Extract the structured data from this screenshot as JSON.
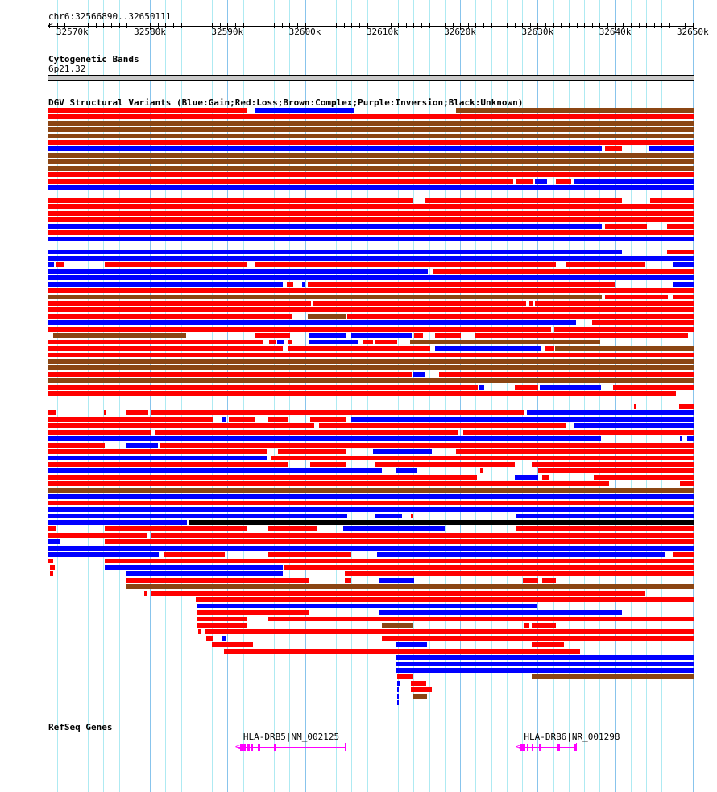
{
  "ruler": {
    "location": "chr6:32566890..32650111",
    "start_kb": 32566.89,
    "end_kb": 32650.11,
    "tick_labels": [
      "32570k",
      "32580k",
      "32590k",
      "32600k",
      "32610k",
      "32620k",
      "32630k",
      "32640k",
      "32650k"
    ]
  },
  "cyto": {
    "title": "Cytogenetic Bands",
    "band": "6p21.32"
  },
  "dgv": {
    "title": "DGV Structural Variants (Blue:Gain;Red:Loss;Brown:Complex;Purple:Inversion;Black:Unknown)",
    "colors": {
      "r": "#ff0000",
      "b": "#0000ff",
      "n": "#8b4513",
      "k": "#000000"
    },
    "rows": [
      "r:32566.9-32592.4,b:32593.5-32606.4,n:32619.5-32650.1",
      "r:32566.9-32650.1",
      "n:32566.9-32650.1",
      "n:32566.9-32650.1",
      "n:32566.9-32650.1",
      "r:32566.9-32650.1",
      "b:32566.9-32638.3,r:32638.7-32640.9,b:32644.4-32650.1",
      "n:32566.9-32650.1",
      "n:32566.9-32650.1",
      "n:32566.9-32650.1",
      "r:32566.9-32650.1",
      "r:32566.9-32626.8,r:32627.2-32629.3,b:32629.6-32631.2,r:32632.3-32634.3,b:32634.7-32650.1",
      "b:32566.9-32650.1",
      "",
      "r:32566.9-32614.0,r:32615.4-32640.9,r:32644.5-32650.1",
      "r:32566.9-32650.1",
      "r:32566.9-32650.1",
      "r:32566.9-32650.1",
      "b:32566.9-32638.3,r:32638.7-32644.1,r:32646.7-32650.1",
      "r:32566.9-32650.1",
      "b:32566.9-32650.1",
      "",
      "b:32566.9-32640.9,r:32646.7-32650.1",
      "b:32566.9-32650.1",
      "b:32566.9-32567.6,r:32567.8-32569.0,r:32574.2-32592.6,r:32593.5-32632.3,r:32633.7-32643.9,b:32647.5-32650.1",
      "b:32566.9-32615.8,r:32616.4-32650.1",
      "b:32566.9-32650.1",
      "b:32566.9-32597.1,r:32597.6-32598.5,b:32599.6-32599.9,r:32600.3-32639.9,b:32647.5-32650.1",
      "r:32566.9-32650.1",
      "n:32566.9-32638.3,r:32638.7-32646.8,r:32647.5-32650.1",
      "r:32566.9-32600.8,r:32601.0-32628.5,r:32628.9-32629.3,r:32629.6-32650.1",
      "r:32566.9-32650.1",
      "r:32566.9-32598.3,n:32600.3-32605.2,r:32605.4-32650.1",
      "b:32566.9-32634.9,r:32637.0-32650.1",
      "r:32566.9-32631.7,r:32632.1-32650.1",
      "n:32567.5-32584.7,r:32593.5-32598.1,b:32600.4-32605.2,b:32606.0-32613.8,r:32614.1-32615.2,r:32616.8-32620.1,r:32622.0-32649.4",
      "r:32566.9-32594.6,r:32595.4-32596.3,b:32596.4-32597.3,r:32597.7-32598.3,b:32600.4-32606.8,r:32607.4-32608.8,r:32609.1-32611.9,n:32613.5-32638.1",
      "r:32566.9-32597.1,r:32597.7-32616.1,b:32616.8-32630.5,r:32630.9-32632.1,n:32632.2-32650.1",
      "r:32566.9-32650.1",
      "n:32566.9-32650.1",
      "n:32566.9-32650.1",
      "r:32566.9-32613.8,b:32614.0-32615.4,r:32617.3-32650.1",
      "n:32566.9-32650.1",
      "r:32566.9-32622.3,b:32622.5-32623.1,r:32627.0-32630.1,b:32630.3-32638.2,r:32639.7-32650.1",
      "r:32566.9-32647.8",
      "",
      "r:32642.4-32642.6,r:32648.2-32650.1",
      "r:32566.9-32567.8,r:32574.1-32574.3,r:32577.0-32579.8,r:32580.1-32628.2,b:32628.6-32650.1",
      "r:32566.9-32588.2,b:32589.3-32589.7,r:32590.2-32593.5,r:32595.3-32597.9,r:32600.7-32605.2,b:32606.0-32650.1",
      "r:32566.9-32601.2,r:32601.8-32633.7,b:32634.6-32650.1",
      "r:32566.9-32580.2,r:32580.7-32619.8,r:32620.4-32650.1",
      "b:32566.9-32638.2,b:32648.3-32648.6,b:32649.3-32650.1",
      "r:32566.9-32574.2,b:32576.9-32581.0,r:32581.3-32650.1",
      "r:32566.9-32595.2,r:32596.5-32605.2,b:32608.8-32616.3,r:32619.5-32650.1",
      "b:32566.9-32595.1,r:32595.6-32650.1",
      "r:32566.9-32597.9,r:32600.7-32605.2,r:32609.1-32627.0,r:32629.2-32650.1",
      "b:32566.9-32609.9,b:32611.7-32614.4,r:32622.6-32622.9,r:32630.1-32650.1",
      "r:32566.9-32622.2,b:32627.0-32630.1,r:32630.6-32631.5,r:32637.2-32650.1",
      "r:32566.9-32639.2,r:32648.3-32650.1",
      "n:32566.9-32650.1",
      "b:32566.9-32650.1",
      "r:32566.9-32650.1",
      "b:32566.9-32650.1",
      "b:32566.9-32605.4,b:32609.1-32612.5,r:32613.6-32614.0,b:32627.1-32650.1",
      "b:32566.9-32584.8,k:32585.0-32650.1",
      "r:32566.9-32567.9,r:32574.2-32592.4,r:32595.3-32601.6,b:32604.9-32618.0,r:32627.1-32650.1",
      "r:32566.9-32579.7,r:32580.1-32650.1",
      "b:32566.9-32568.3,r:32574.2-32650.1",
      "b:32566.9-32650.1",
      "b:32566.9-32581.1,r:32581.9-32589.6,r:32595.3-32606.0,b:32609.3-32646.5,r:32647.4-32650.1",
      "r:32566.9-32567.5,r:32574.2-32650.1",
      "r:32567.1-32567.7,b:32574.2-32597.1,r:32597.3-32650.1",
      "r:32567.1-32567.5,b:32576.9-32597.1,r:32605.1-32650.1",
      "r:32576.9-32600.4,r:32605.1-32606.0,b:32609.6-32614.1,r:32628.1-32630.1,r:32630.6-32632.3",
      "n:32576.9-32650.1",
      "r:32579.3-32579.7,r:32580.1-32643.9",
      "r:32585.9-32650.1",
      "b:32586.1-32629.9",
      "r:32586.1-32600.4,b:32609.6-32640.9",
      "r:32586.1-32592.4,r:32595.3-32650.1",
      "r:32586.1-32592.4,n:32609.9-32614.0,r:32628.2-32628.9,r:32629.2-32632.3",
      "r:32586.2-32586.5,r:32587.0-32650.1",
      "r:32587.3-32588.1,b:32589.3-32589.7,r:32609.9-32650.1",
      "r:32588.0-32593.3,b:32611.7-32615.7,r:32629.2-32633.4",
      "r:32589.5-32635.5",
      "b:32611.8-32650.1",
      "b:32611.8-32650.1",
      "b:32611.8-32650.1",
      "r:32611.9-32614.0,n:32629.2-32650.1",
      "b:32611.9-32612.3,r:32613.6-32615.6",
      "b:32611.9-32612.1,r:32613.6-32616.3",
      "b:32611.9-32612.1,n:32614.0-32615.7",
      "b:32611.9-32612.1"
    ]
  },
  "refseq": {
    "title": "RefSeq Genes",
    "genes": [
      {
        "label": "HLA-DRB5|NM_002125",
        "start_kb": 32591.4,
        "end_kb": 32605.1,
        "exons": [
          [
            32591.6,
            32592.3
          ],
          [
            32592.6,
            32592.9
          ],
          [
            32593.1,
            32593.3
          ],
          [
            32593.9,
            32594.2
          ],
          [
            32596.0,
            32596.2
          ]
        ]
      },
      {
        "label": "HLA-DRB6|NR_001298",
        "start_kb": 32627.6,
        "end_kb": 32634.9,
        "exons": [
          [
            32627.8,
            32628.4
          ],
          [
            32628.6,
            32628.8
          ],
          [
            32629.2,
            32629.4
          ],
          [
            32630.2,
            32630.5
          ],
          [
            32632.6,
            32632.9
          ],
          [
            32634.6,
            32634.9
          ]
        ]
      }
    ]
  }
}
